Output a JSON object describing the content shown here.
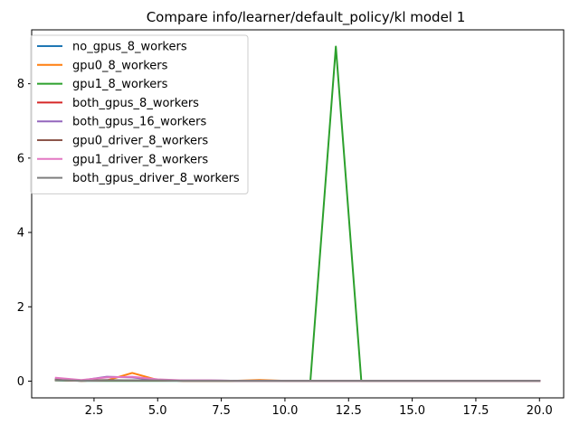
{
  "chart_data": {
    "type": "line",
    "title": "Compare info/learner/default_policy/kl model 1",
    "xlabel": "",
    "ylabel": "",
    "xlim": [
      0.05,
      20.95
    ],
    "ylim": [
      -0.45,
      9.45
    ],
    "xticks": [
      2.5,
      5.0,
      7.5,
      10.0,
      12.5,
      15.0,
      17.5,
      20.0
    ],
    "xtick_labels": [
      "2.5",
      "5.0",
      "7.5",
      "10.0",
      "12.5",
      "15.0",
      "17.5",
      "20.0"
    ],
    "yticks": [
      0,
      2,
      4,
      6,
      8
    ],
    "ytick_labels": [
      "0",
      "2",
      "4",
      "6",
      "8"
    ],
    "grid": false,
    "legend_position": "upper-left",
    "x": [
      1,
      2,
      3,
      4,
      5,
      6,
      7,
      8,
      9,
      10,
      11,
      12,
      13,
      14,
      15,
      16,
      17,
      18,
      19,
      20
    ],
    "series": [
      {
        "name": "no_gpus_8_workers",
        "color": "#1f77b4",
        "values": [
          0.02,
          0.01,
          0.01,
          0.01,
          0.01,
          0.01,
          0.01,
          0.01,
          0.01,
          0.01,
          0.01,
          0.01,
          0.01,
          0.01,
          0.01,
          0.01,
          0.01,
          0.01,
          0.01,
          0.01
        ]
      },
      {
        "name": "gpu0_8_workers",
        "color": "#ff7f0e",
        "values": [
          0.03,
          0.01,
          0.02,
          0.22,
          0.03,
          0.01,
          0.01,
          0.01,
          0.03,
          0.01,
          0.01,
          0.01,
          0.01,
          0.01,
          0.01,
          0.01,
          0.01,
          0.01,
          0.01,
          0.01
        ]
      },
      {
        "name": "gpu1_8_workers",
        "color": "#2ca02c",
        "values": [
          0.02,
          0.01,
          0.01,
          0.01,
          0.01,
          0.01,
          0.01,
          0.01,
          0.01,
          0.01,
          0.01,
          9.0,
          0.01,
          0.01,
          0.01,
          0.01,
          0.01,
          0.01,
          0.01,
          0.01
        ]
      },
      {
        "name": "both_gpus_8_workers",
        "color": "#d62728",
        "values": [
          0.03,
          0.01,
          0.02,
          0.02,
          0.02,
          0.01,
          0.01,
          0.01,
          0.01,
          0.01,
          0.01,
          0.01,
          0.01,
          0.01,
          0.01,
          0.01,
          0.01,
          0.01,
          0.01,
          0.01
        ]
      },
      {
        "name": "both_gpus_16_workers",
        "color": "#9467bd",
        "values": [
          0.06,
          0.02,
          0.12,
          0.1,
          0.03,
          0.02,
          0.02,
          0.01,
          0.01,
          0.01,
          0.01,
          0.01,
          0.01,
          0.01,
          0.01,
          0.01,
          0.01,
          0.01,
          0.01,
          0.01
        ]
      },
      {
        "name": "gpu0_driver_8_workers",
        "color": "#8c564b",
        "values": [
          0.04,
          0.02,
          0.03,
          0.02,
          0.02,
          0.01,
          0.01,
          0.01,
          0.01,
          0.01,
          0.01,
          0.01,
          0.01,
          0.01,
          0.01,
          0.01,
          0.01,
          0.01,
          0.01,
          0.01
        ]
      },
      {
        "name": "gpu1_driver_8_workers",
        "color": "#e377c2",
        "values": [
          0.09,
          0.03,
          0.1,
          0.12,
          0.05,
          0.02,
          0.02,
          0.01,
          0.01,
          0.01,
          0.01,
          0.01,
          0.01,
          0.01,
          0.01,
          0.01,
          0.01,
          0.01,
          0.01,
          0.01
        ]
      },
      {
        "name": "both_gpus_driver_8_workers",
        "color": "#7f7f7f",
        "values": [
          0.03,
          0.01,
          0.02,
          0.02,
          0.02,
          0.01,
          0.01,
          0.01,
          0.01,
          0.01,
          0.01,
          0.01,
          0.01,
          0.01,
          0.01,
          0.01,
          0.01,
          0.01,
          0.01,
          0.01
        ]
      }
    ]
  }
}
